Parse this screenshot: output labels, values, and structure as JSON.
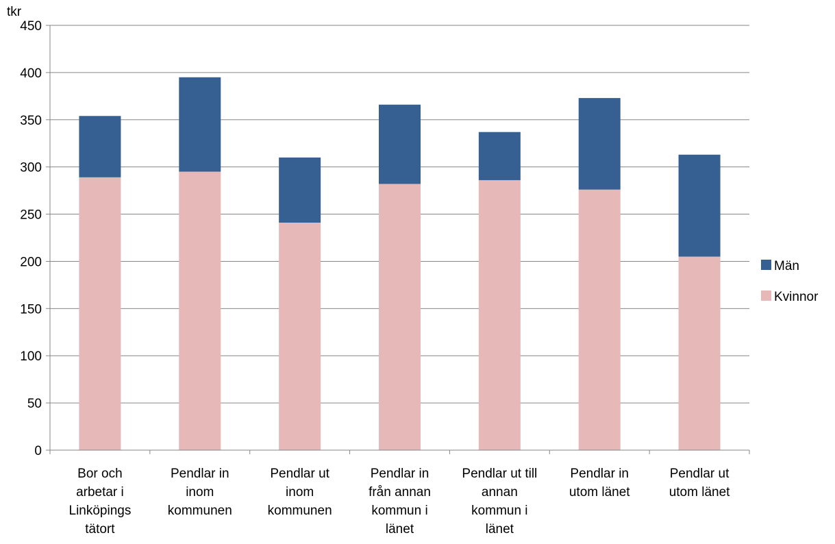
{
  "chart_data": {
    "type": "bar",
    "stacked": true,
    "y_unit_label": "tkr",
    "categories": [
      [
        "Bor och",
        "arbetar i",
        "Linköpings",
        "tätort"
      ],
      [
        "Pendlar in",
        "inom",
        "kommunen"
      ],
      [
        "Pendlar ut",
        "inom",
        "kommunen"
      ],
      [
        "Pendlar in",
        "från annan",
        "kommun i",
        "länet"
      ],
      [
        "Pendlar ut till",
        "annan",
        "kommun i",
        "länet"
      ],
      [
        "Pendlar in",
        "utom länet"
      ],
      [
        "Pendlar ut",
        "utom länet"
      ]
    ],
    "series": [
      {
        "name": "Kvinnor",
        "color": "#e6b8b7",
        "values": [
          289,
          295,
          241,
          282,
          286,
          276,
          205
        ]
      },
      {
        "name": "Män",
        "color": "#366092",
        "values": [
          65,
          100,
          69,
          84,
          51,
          97,
          108
        ]
      }
    ],
    "ylim": [
      0,
      450
    ],
    "y_ticks": [
      0,
      50,
      100,
      150,
      200,
      250,
      300,
      350,
      400,
      450
    ],
    "grid": true,
    "gridline_color": "#868686",
    "legend_position": "right",
    "legend_order": [
      "Män",
      "Kvinnor"
    ]
  }
}
